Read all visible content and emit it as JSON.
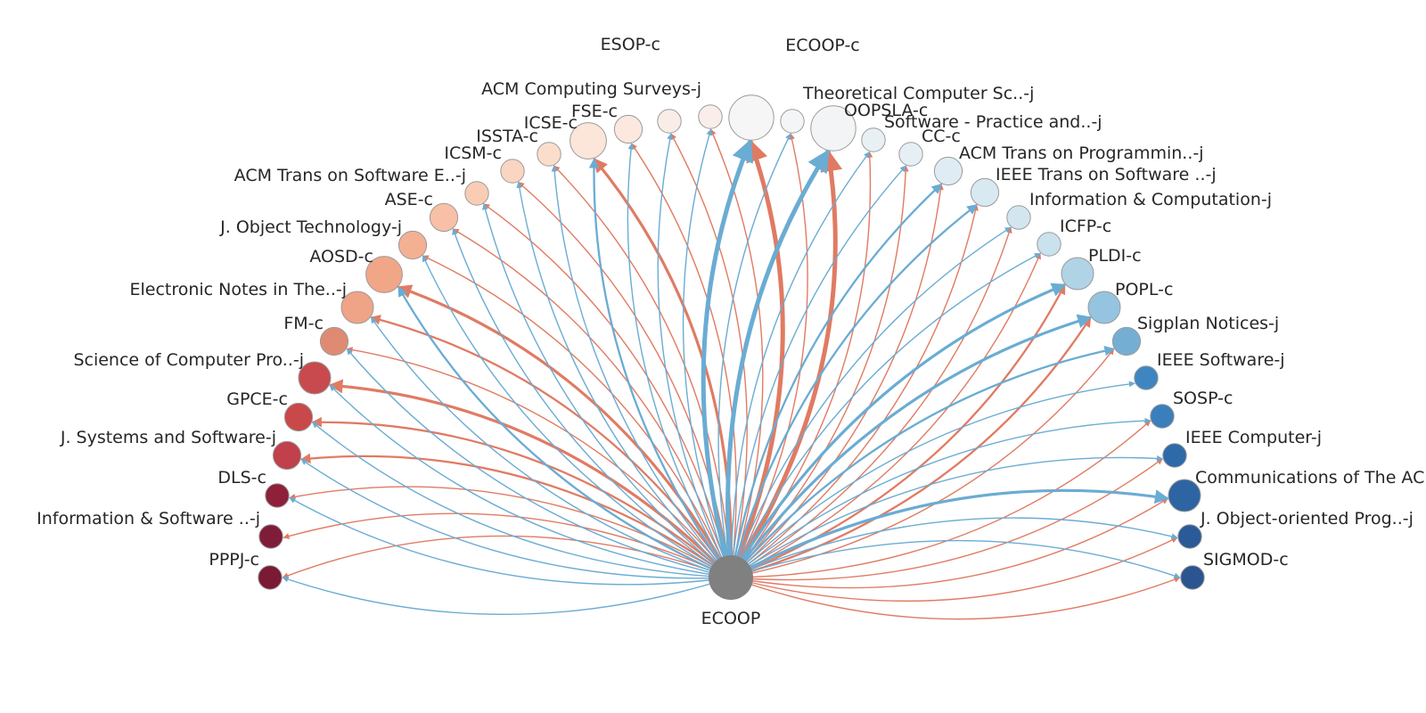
{
  "center": {
    "name": "ECOOP",
    "color": "#808080"
  },
  "edge_colors": {
    "outgoing": "#e07b63",
    "incoming": "#6aacd3"
  },
  "nodes": [
    {
      "name": "PPPJ-c",
      "color": "#7a1a34",
      "size": 3,
      "out": 1,
      "in": 1
    },
    {
      "name": "Information & Software ..-j",
      "color": "#7f1d39",
      "size": 3,
      "out": 1,
      "in": 0
    },
    {
      "name": "DLS-c",
      "color": "#8e2039",
      "size": 3,
      "out": 1,
      "in": 1
    },
    {
      "name": "J. Systems and Software-j",
      "color": "#c0404c",
      "size": 4,
      "out": 2,
      "in": 1
    },
    {
      "name": "GPCE-c",
      "color": "#c94849",
      "size": 4,
      "out": 2,
      "in": 1
    },
    {
      "name": "Science of Computer Pro..-j",
      "color": "#c84a4f",
      "size": 5,
      "out": 3,
      "in": 1
    },
    {
      "name": "FM-c",
      "color": "#df8b73",
      "size": 4,
      "out": 1,
      "in": 1
    },
    {
      "name": "Electronic Notes in The..-j",
      "color": "#efa387",
      "size": 5,
      "out": 2,
      "in": 1
    },
    {
      "name": "AOSD-c",
      "color": "#f1a688",
      "size": 6,
      "out": 3,
      "in": 2
    },
    {
      "name": "J. Object Technology-j",
      "color": "#f4b093",
      "size": 4,
      "out": 1,
      "in": 1
    },
    {
      "name": "ASE-c",
      "color": "#f8c0a6",
      "size": 4,
      "out": 1,
      "in": 1
    },
    {
      "name": "ACM Trans on Software E..-j",
      "color": "#f9cdb5",
      "size": 3,
      "out": 1,
      "in": 1
    },
    {
      "name": "ICSM-c",
      "color": "#fad5c2",
      "size": 3,
      "out": 1,
      "in": 1
    },
    {
      "name": "ISSTA-c",
      "color": "#fbddcc",
      "size": 3,
      "out": 1,
      "in": 1
    },
    {
      "name": "ICSE-c",
      "color": "#fce5d9",
      "size": 6,
      "out": 3,
      "in": 2
    },
    {
      "name": "FSE-c",
      "color": "#fce8de",
      "size": 4,
      "out": 1,
      "in": 1
    },
    {
      "name": "ESOP-c",
      "color": "#f9ede7",
      "size": 3,
      "out": 1,
      "in": 1
    },
    {
      "name": "ACM Computing Surveys-j",
      "color": "#faeeea",
      "size": 3,
      "out": 1,
      "in": 1
    },
    {
      "name": "ECOOP-c",
      "color": "#f7f6f6",
      "size": 8,
      "out": 5,
      "in": 5
    },
    {
      "name": "Theoretical Computer Sc..-j",
      "color": "#f4f5f6",
      "size": 3,
      "out": 1,
      "in": 1
    },
    {
      "name": "OOPSLA-c",
      "color": "#f3f4f5",
      "size": 8,
      "out": 5,
      "in": 5
    },
    {
      "name": "Software - Practice and..-j",
      "color": "#e9f0f4",
      "size": 3,
      "out": 1,
      "in": 1
    },
    {
      "name": "CC-c",
      "color": "#e6eff4",
      "size": 3,
      "out": 1,
      "in": 1
    },
    {
      "name": "ACM Trans on Programmin..-j",
      "color": "#e0ecf3",
      "size": 4,
      "out": 1,
      "in": 2
    },
    {
      "name": "IEEE Trans on Software ..-j",
      "color": "#d9e9f2",
      "size": 4,
      "out": 1,
      "in": 2
    },
    {
      "name": "Information & Computation-j",
      "color": "#d3e6f0",
      "size": 3,
      "out": 1,
      "in": 1
    },
    {
      "name": "ICFP-c",
      "color": "#cae1ee",
      "size": 3,
      "out": 1,
      "in": 1
    },
    {
      "name": "PLDI-c",
      "color": "#b0d3e6",
      "size": 5,
      "out": 2,
      "in": 3
    },
    {
      "name": "POPL-c",
      "color": "#94c4df",
      "size": 5,
      "out": 2,
      "in": 3
    },
    {
      "name": "Sigplan Notices-j",
      "color": "#74afd3",
      "size": 4,
      "out": 1,
      "in": 2
    },
    {
      "name": "IEEE Software-j",
      "color": "#3f86c0",
      "size": 3,
      "out": 0,
      "in": 1
    },
    {
      "name": "SOSP-c",
      "color": "#3a7fbb",
      "size": 3,
      "out": 1,
      "in": 1
    },
    {
      "name": "IEEE Computer-j",
      "color": "#2f6aa8",
      "size": 3,
      "out": 1,
      "in": 1
    },
    {
      "name": "Communications of The AC",
      "color": "#2d64a2",
      "size": 5,
      "out": 1,
      "in": 3
    },
    {
      "name": "J. Object-oriented Prog..-j",
      "color": "#2a5b98",
      "size": 3,
      "out": 1,
      "in": 1
    },
    {
      "name": "SIGMOD-c",
      "color": "#2a5591",
      "size": 3,
      "out": 1,
      "in": 1
    }
  ]
}
